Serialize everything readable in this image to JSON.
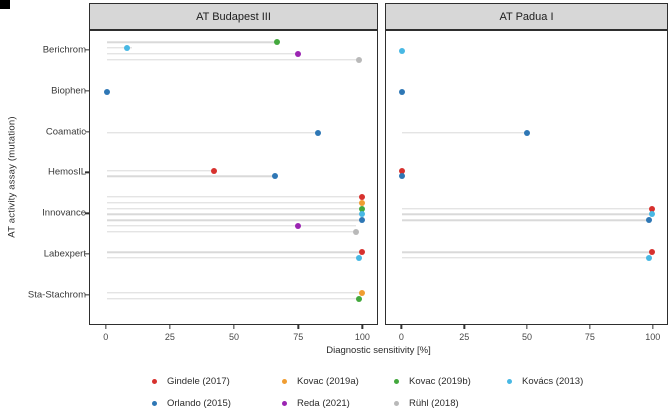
{
  "panels": [
    {
      "title": "AT Budapest III"
    },
    {
      "title": "AT Padua I"
    }
  ],
  "y_axis": {
    "label": "AT activity assay (mutation)",
    "categories": [
      "Berichrom",
      "Biophen",
      "Coamatic",
      "HemosIL",
      "Innovance",
      "Labexpert",
      "Sta-Stachrom"
    ]
  },
  "x_axis": {
    "label": "Diagnostic sensitivity [%]",
    "ticks": [
      0,
      25,
      50,
      75,
      100
    ]
  },
  "studies": {
    "Gindele (2017)": "#d7312e",
    "Kovac (2019a)": "#f09d32",
    "Kovac (2019b)": "#43a83d",
    "Kovács (2013)": "#48b8e4",
    "Orlando (2015)": "#2e77b5",
    "Reda (2021)": "#9b25b2",
    "Rühl (2018)": "#b9b9b9"
  },
  "legend": {
    "rows": [
      [
        "Gindele (2017)",
        "Kovac (2019a)",
        "Kovac (2019b)",
        "Kovács (2013)"
      ],
      [
        "Orlando (2015)",
        "Reda (2021)",
        "Rühl (2018)"
      ]
    ]
  },
  "chart_data": {
    "type": "scatter",
    "xlabel": "Diagnostic sensitivity [%]",
    "ylabel": "AT activity assay (mutation)",
    "xlim": [
      0,
      100
    ],
    "xticks": [
      0,
      25,
      50,
      75,
      100
    ],
    "grid": false,
    "legend_position": "bottom",
    "facets": [
      {
        "title": "AT Budapest III",
        "points": [
          {
            "assay": "Berichrom",
            "study": "Kovac (2019b)",
            "sensitivity": 67,
            "range": [
              0,
              67
            ]
          },
          {
            "assay": "Berichrom",
            "study": "Kovács (2013)",
            "sensitivity": 8,
            "range": [
              0,
              10
            ]
          },
          {
            "assay": "Berichrom",
            "study": "Reda (2021)",
            "sensitivity": 75,
            "range": [
              0,
              75
            ]
          },
          {
            "assay": "Berichrom",
            "study": "Rühl (2018)",
            "sensitivity": 99,
            "range": [
              0,
              99
            ]
          },
          {
            "assay": "Biophen",
            "study": "Orlando (2015)",
            "sensitivity": 0,
            "range": null
          },
          {
            "assay": "Coamatic",
            "study": "Orlando (2015)",
            "sensitivity": 83,
            "range": [
              0,
              83
            ]
          },
          {
            "assay": "HemosIL",
            "study": "Gindele (2017)",
            "sensitivity": 42,
            "range": [
              0,
              42
            ]
          },
          {
            "assay": "HemosIL",
            "study": "Orlando (2015)",
            "sensitivity": 66,
            "range": [
              0,
              66
            ]
          },
          {
            "assay": "Innovance",
            "study": "Gindele (2017)",
            "sensitivity": 100,
            "range": [
              0,
              100
            ]
          },
          {
            "assay": "Innovance",
            "study": "Kovac (2019a)",
            "sensitivity": 100,
            "range": [
              0,
              100
            ]
          },
          {
            "assay": "Innovance",
            "study": "Kovac (2019b)",
            "sensitivity": 100,
            "range": [
              0,
              100
            ]
          },
          {
            "assay": "Innovance",
            "study": "Kovács (2013)",
            "sensitivity": 100,
            "range": [
              0,
              100
            ]
          },
          {
            "assay": "Innovance",
            "study": "Orlando (2015)",
            "sensitivity": 100,
            "range": [
              0,
              100
            ]
          },
          {
            "assay": "Innovance",
            "study": "Reda (2021)",
            "sensitivity": 75,
            "range": [
              0,
              98
            ]
          },
          {
            "assay": "Innovance",
            "study": "Rühl (2018)",
            "sensitivity": 98,
            "range": [
              0,
              98
            ]
          },
          {
            "assay": "Labexpert",
            "study": "Gindele (2017)",
            "sensitivity": 100,
            "range": [
              0,
              100
            ]
          },
          {
            "assay": "Labexpert",
            "study": "Kovács (2013)",
            "sensitivity": 99,
            "range": [
              0,
              99
            ]
          },
          {
            "assay": "Sta-Stachrom",
            "study": "Kovac (2019a)",
            "sensitivity": 100,
            "range": [
              0,
              100
            ]
          },
          {
            "assay": "Sta-Stachrom",
            "study": "Kovac (2019b)",
            "sensitivity": 99,
            "range": [
              0,
              99
            ]
          }
        ]
      },
      {
        "title": "AT Padua I",
        "points": [
          {
            "assay": "Berichrom",
            "study": "Kovács (2013)",
            "sensitivity": 0,
            "range": null
          },
          {
            "assay": "Biophen",
            "study": "Orlando (2015)",
            "sensitivity": 0,
            "range": null
          },
          {
            "assay": "Coamatic",
            "study": "Orlando (2015)",
            "sensitivity": 50,
            "range": [
              0,
              50
            ]
          },
          {
            "assay": "HemosIL",
            "study": "Gindele (2017)",
            "sensitivity": 0,
            "range": null
          },
          {
            "assay": "HemosIL",
            "study": "Orlando (2015)",
            "sensitivity": 0,
            "range": null
          },
          {
            "assay": "Innovance",
            "study": "Gindele (2017)",
            "sensitivity": 100,
            "range": [
              0,
              100
            ]
          },
          {
            "assay": "Innovance",
            "study": "Kovács (2013)",
            "sensitivity": 100,
            "range": [
              0,
              100
            ]
          },
          {
            "assay": "Innovance",
            "study": "Orlando (2015)",
            "sensitivity": 99,
            "range": [
              0,
              99
            ]
          },
          {
            "assay": "Labexpert",
            "study": "Gindele (2017)",
            "sensitivity": 100,
            "range": [
              0,
              100
            ]
          },
          {
            "assay": "Labexpert",
            "study": "Kovács (2013)",
            "sensitivity": 99,
            "range": [
              0,
              99
            ]
          }
        ]
      }
    ]
  }
}
